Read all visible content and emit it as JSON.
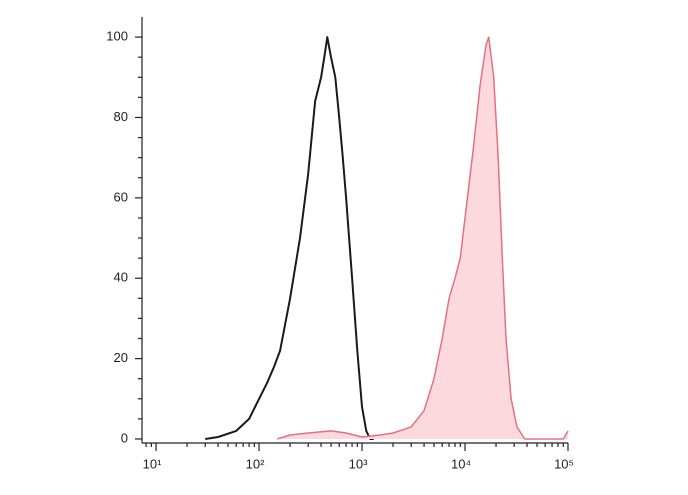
{
  "chart_data": {
    "type": "histogram-overlay",
    "xscale": "log",
    "xlim": [
      7.3,
      100000
    ],
    "ylim": [
      -1,
      105
    ],
    "xticks": [
      {
        "value": 10,
        "label": "10¹"
      },
      {
        "value": 100,
        "label": "10²"
      },
      {
        "value": 1000,
        "label": "10³"
      },
      {
        "value": 10000,
        "label": "10⁴"
      },
      {
        "value": 100000,
        "label": "10⁵"
      }
    ],
    "yticks": [
      0,
      20,
      40,
      60,
      80,
      100
    ],
    "series": [
      {
        "color": "#1a1a1a",
        "filled": false,
        "x": [
          30,
          40,
          60,
          80,
          100,
          120,
          140,
          160,
          200,
          250,
          300,
          350,
          400,
          430,
          460,
          500,
          550,
          600,
          650,
          700,
          800,
          900,
          1000,
          1100,
          1200,
          1300
        ],
        "values": [
          0,
          0.5,
          2,
          5,
          10,
          14,
          18,
          22,
          35,
          50,
          66,
          84,
          90,
          95,
          100,
          95,
          90,
          80,
          70,
          60,
          40,
          22,
          8,
          2,
          0,
          0
        ]
      },
      {
        "color": "#e8707e",
        "fill": "#fbd9de",
        "filled": true,
        "x": [
          150,
          200,
          300,
          500,
          700,
          1000,
          1500,
          2000,
          3000,
          4000,
          5000,
          6000,
          7000,
          8000,
          9000,
          10000,
          12000,
          14000,
          16000,
          17000,
          19000,
          21000,
          23000,
          25000,
          28000,
          32000,
          38000,
          90000,
          100000
        ],
        "values": [
          0,
          1,
          1.5,
          2,
          1.5,
          0.5,
          1,
          1.5,
          3,
          7,
          15,
          25,
          35,
          40,
          45,
          55,
          72,
          88,
          98,
          100,
          90,
          70,
          45,
          25,
          10,
          3,
          0,
          0,
          2
        ]
      }
    ]
  }
}
